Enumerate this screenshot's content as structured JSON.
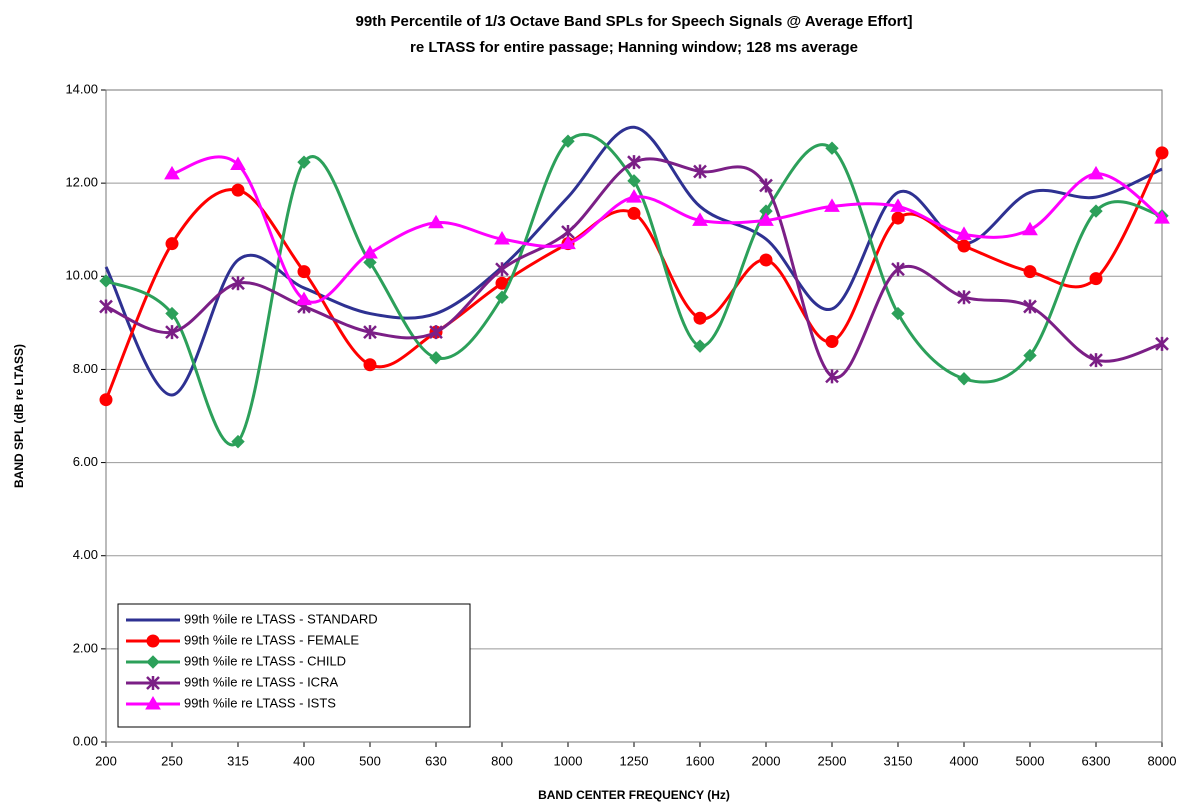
{
  "chart_data": {
    "type": "line",
    "title": "99th Percentile of 1/3 Octave Band SPLs for Speech Signals @ Average Effort]",
    "subtitle": "re LTASS for entire passage; Hanning window; 128 ms average",
    "x_label": "BAND CENTER FREQUENCY (Hz)",
    "y_label": "BAND SPL (dB re LTASS)",
    "categories": [
      "200",
      "250",
      "315",
      "400",
      "500",
      "630",
      "800",
      "1000",
      "1250",
      "1600",
      "2000",
      "2500",
      "3150",
      "4000",
      "5000",
      "6300",
      "8000"
    ],
    "ylim": [
      0,
      14
    ],
    "yticks": [
      {
        "value": 0,
        "label": "0.00"
      },
      {
        "value": 2,
        "label": "2.00"
      },
      {
        "value": 4,
        "label": "4.00"
      },
      {
        "value": 6,
        "label": "6.00"
      },
      {
        "value": 8,
        "label": "8.00"
      },
      {
        "value": 10,
        "label": "10.00"
      },
      {
        "value": 12,
        "label": "12.00"
      },
      {
        "value": 14,
        "label": "14.00"
      }
    ],
    "grid": true,
    "smooth": true,
    "legend": "lower-left",
    "series": [
      {
        "name": "99th %ile re LTASS - STANDARD",
        "color": "#2e3192",
        "marker": "none",
        "values": [
          10.2,
          7.45,
          10.35,
          9.75,
          9.2,
          9.2,
          10.2,
          11.7,
          13.2,
          11.5,
          10.8,
          9.3,
          11.8,
          10.7,
          11.8,
          11.7,
          12.3
        ]
      },
      {
        "name": "99th %ile re LTASS - FEMALE",
        "color": "#ff0000",
        "marker": "circle",
        "values": [
          7.35,
          10.7,
          11.85,
          10.1,
          8.1,
          8.8,
          9.85,
          10.7,
          11.35,
          9.1,
          10.35,
          8.6,
          11.25,
          10.65,
          10.1,
          9.95,
          12.65
        ]
      },
      {
        "name": "99th %ile re LTASS - CHILD",
        "color": "#2ca05a",
        "marker": "diamond",
        "values": [
          9.9,
          9.2,
          6.45,
          12.45,
          10.3,
          8.25,
          9.55,
          12.9,
          12.05,
          8.5,
          11.4,
          12.75,
          9.2,
          7.8,
          8.3,
          11.4,
          11.3
        ]
      },
      {
        "name": "99th %ile re LTASS - ICRA",
        "color": "#7b1f86",
        "marker": "star",
        "values": [
          9.35,
          8.8,
          9.85,
          9.35,
          8.8,
          8.8,
          10.15,
          10.95,
          12.45,
          12.25,
          11.95,
          7.85,
          10.15,
          9.55,
          9.35,
          8.2,
          8.55
        ]
      },
      {
        "name": "99th %ile re LTASS - ISTS",
        "color": "#ff00ff",
        "marker": "triangle",
        "values": [
          null,
          12.2,
          12.4,
          9.5,
          10.5,
          11.15,
          10.8,
          10.7,
          11.7,
          11.2,
          11.2,
          11.5,
          11.5,
          10.9,
          11.0,
          12.2,
          11.25
        ]
      }
    ]
  }
}
